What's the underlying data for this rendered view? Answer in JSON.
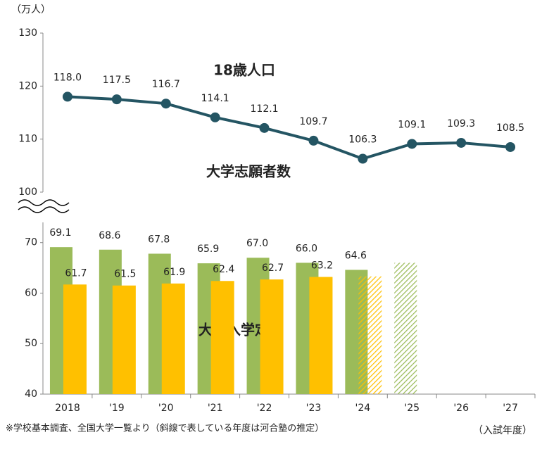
{
  "chart_data": {
    "type": "combo",
    "ylabel": "（万人）",
    "xlabel": "（入試年度）",
    "note": "※学校基本調査、全国大学一覧より（斜線で表している年度は河合塾の推定）",
    "categories": [
      "2018",
      "'19",
      "'20",
      "'21",
      "'22",
      "'23",
      "'24",
      "'25",
      "'26",
      "'27"
    ],
    "ylim": [
      40,
      74
    ],
    "yticks": [
      40,
      50,
      60,
      70
    ],
    "y2lim": [
      100,
      130
    ],
    "y2ticks": [
      100,
      110,
      120,
      130
    ],
    "series": [
      {
        "name": "18歳人口",
        "type": "line",
        "axis": "y2",
        "color": "#245563",
        "values": [
          118.0,
          117.5,
          116.7,
          114.1,
          112.1,
          109.7,
          106.3,
          109.1,
          109.3,
          108.5
        ],
        "value_labels": [
          "118.0",
          "117.5",
          "116.7",
          "114.1",
          "112.1",
          "109.7",
          "106.3",
          "109.1",
          "109.3",
          "108.5"
        ]
      },
      {
        "name": "大学志願者数",
        "type": "bar",
        "color": "#9bbb59",
        "values": [
          69.1,
          68.6,
          67.8,
          65.9,
          67.0,
          66.0,
          64.6,
          66.0,
          null,
          null
        ],
        "value_labels": [
          "69.1",
          "68.6",
          "67.8",
          "65.9",
          "67.0",
          "66.0",
          "64.6",
          null,
          null,
          null
        ],
        "hatched": [
          false,
          false,
          false,
          false,
          false,
          false,
          false,
          true,
          false,
          false
        ]
      },
      {
        "name": "大学入学定員",
        "type": "bar",
        "color": "#ffc000",
        "values": [
          61.7,
          61.5,
          61.9,
          62.4,
          62.7,
          63.2,
          63.3,
          null,
          null,
          null
        ],
        "value_labels": [
          "61.7",
          "61.5",
          "61.9",
          "62.4",
          "62.7",
          "63.2",
          null,
          null,
          null,
          null
        ],
        "hatched": [
          false,
          false,
          false,
          false,
          false,
          false,
          true,
          false,
          false,
          false
        ]
      }
    ]
  }
}
